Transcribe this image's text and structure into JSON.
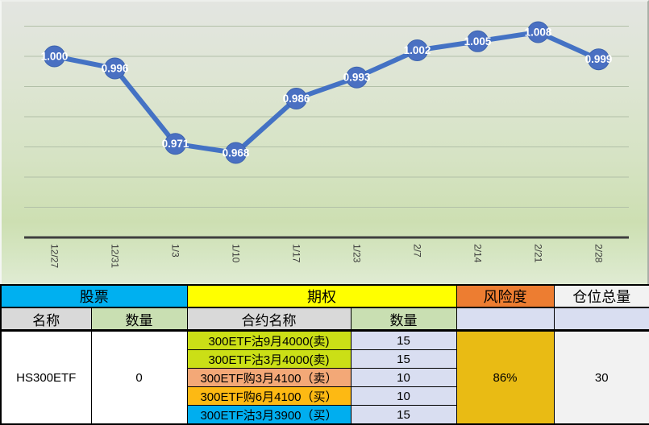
{
  "chart_data": {
    "type": "line",
    "title": "",
    "xlabel": "",
    "ylabel": "",
    "x": [
      "12/27",
      "12/31",
      "1/3",
      "1/10",
      "1/17",
      "1/23",
      "2/7",
      "2/14",
      "2/21",
      "2/28"
    ],
    "values": [
      1.0,
      0.996,
      0.971,
      0.968,
      0.986,
      0.993,
      1.002,
      1.005,
      1.008,
      0.999
    ],
    "point_labels": [
      "1.000",
      "0.996",
      "0.971",
      "0.968",
      "0.986",
      "0.993",
      "1.002",
      "1.005",
      "1.008",
      "0.999"
    ],
    "ylim": [
      0.94,
      1.012
    ],
    "gridlines": [
      1.01,
      1.0,
      0.99,
      0.98,
      0.97,
      0.96,
      0.95
    ],
    "grid": true,
    "legend": "none",
    "line_color": "#4472c4",
    "marker_color": "#4a70c2",
    "marker_edge_color": "#3c63ae",
    "point_label_color": "#ffffff",
    "axis_color": "#3f3f3f",
    "gridline_color": "#b2c0a8",
    "tick_label_color": "#3d3d3d"
  },
  "table": {
    "header_groups": [
      {
        "label": "股票",
        "bg": "#00b0f0"
      },
      {
        "label": "期权",
        "bg": "#ffff00"
      },
      {
        "label": "风险度",
        "bg": "#ed7d31"
      },
      {
        "label": "仓位总量",
        "bg": "#f2f2f2"
      }
    ],
    "subheaders": [
      {
        "label": "名称",
        "bg": "#d9d9d9"
      },
      {
        "label": "数量",
        "bg": "#c9dfb2"
      },
      {
        "label": "合约名称",
        "bg": "#d9d9d9"
      },
      {
        "label": "数量",
        "bg": "#c9dfb2"
      },
      {
        "label": "",
        "bg": "#d9def1"
      },
      {
        "label": "",
        "bg": "#d9def1"
      }
    ],
    "stock": {
      "name": "HS300ETF",
      "quantity": "0"
    },
    "contracts": [
      {
        "name": "300ETF沽9月4000(卖)",
        "bg": "#cbdf16",
        "qty": "15",
        "qty_bg": "#d9def1"
      },
      {
        "name": "300ETF沽3月4000(卖)",
        "bg": "#cbdf16",
        "qty": "15",
        "qty_bg": "#d9def1"
      },
      {
        "name": "300ETF购3月4100（卖）",
        "bg": "#f3a877",
        "qty": "10",
        "qty_bg": "#d9def1"
      },
      {
        "name": "300ETF购6月4100（买）",
        "bg": "#fdb913",
        "qty": "10",
        "qty_bg": "#d9def1"
      },
      {
        "name": "300ETF沽3月3900（买）",
        "bg": "#00aeef",
        "qty": "15",
        "qty_bg": "#d9def1"
      }
    ],
    "risk": {
      "value": "86%",
      "bg": "#e9bb14"
    },
    "total": {
      "value": "30",
      "bg": "#f2f2f2"
    }
  }
}
